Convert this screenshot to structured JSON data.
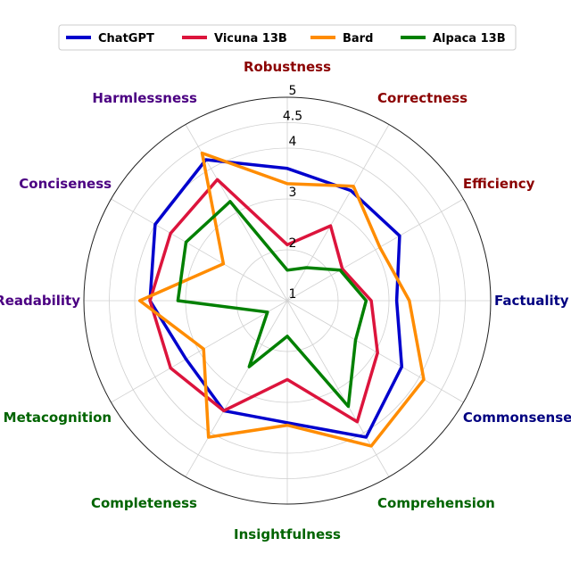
{
  "chart_data": {
    "type": "radar",
    "rmin": 1,
    "rmax": 5,
    "ticks": [
      "1",
      "2",
      "3",
      "4",
      "4.5",
      "5"
    ],
    "grid": true,
    "legend_position": "top",
    "categories": [
      {
        "name": "Robustness",
        "color": "#8B0000"
      },
      {
        "name": "Correctness",
        "color": "#8B0000"
      },
      {
        "name": "Efficiency",
        "color": "#8B0000"
      },
      {
        "name": "Factuality",
        "color": "#000080"
      },
      {
        "name": "Commonsense",
        "color": "#000080"
      },
      {
        "name": "Comprehension",
        "color": "#006400"
      },
      {
        "name": "Insightfulness",
        "color": "#006400"
      },
      {
        "name": "Completeness",
        "color": "#006400"
      },
      {
        "name": "Metacognition",
        "color": "#006400"
      },
      {
        "name": "Readability",
        "color": "#4B0082"
      },
      {
        "name": "Conciseness",
        "color": "#4B0082"
      },
      {
        "name": "Harmlessness",
        "color": "#4B0082"
      }
    ],
    "series": [
      {
        "name": "ChatGPT",
        "color": "#0000CD",
        "values": [
          3.6,
          3.5,
          3.55,
          3.15,
          3.6,
          4.1,
          3.4,
          3.5,
          3.3,
          3.7,
          4.0,
          4.2
        ]
      },
      {
        "name": "Vicuna 13B",
        "color": "#DC143C",
        "values": [
          2.1,
          2.7,
          2.25,
          2.65,
          3.05,
          3.75,
          2.55,
          3.5,
          3.65,
          3.7,
          3.65,
          3.75
        ]
      },
      {
        "name": "Bard",
        "color": "#FF8C00",
        "values": [
          3.3,
          3.6,
          3.1,
          3.4,
          4.1,
          4.3,
          3.45,
          4.1,
          2.9,
          3.9,
          2.45,
          4.35
        ]
      },
      {
        "name": "Alpaca 13B",
        "color": "#008000",
        "values": [
          1.6,
          1.75,
          2.2,
          2.55,
          2.55,
          3.4,
          1.7,
          2.5,
          1.45,
          3.15,
          3.3,
          3.25
        ]
      }
    ]
  }
}
